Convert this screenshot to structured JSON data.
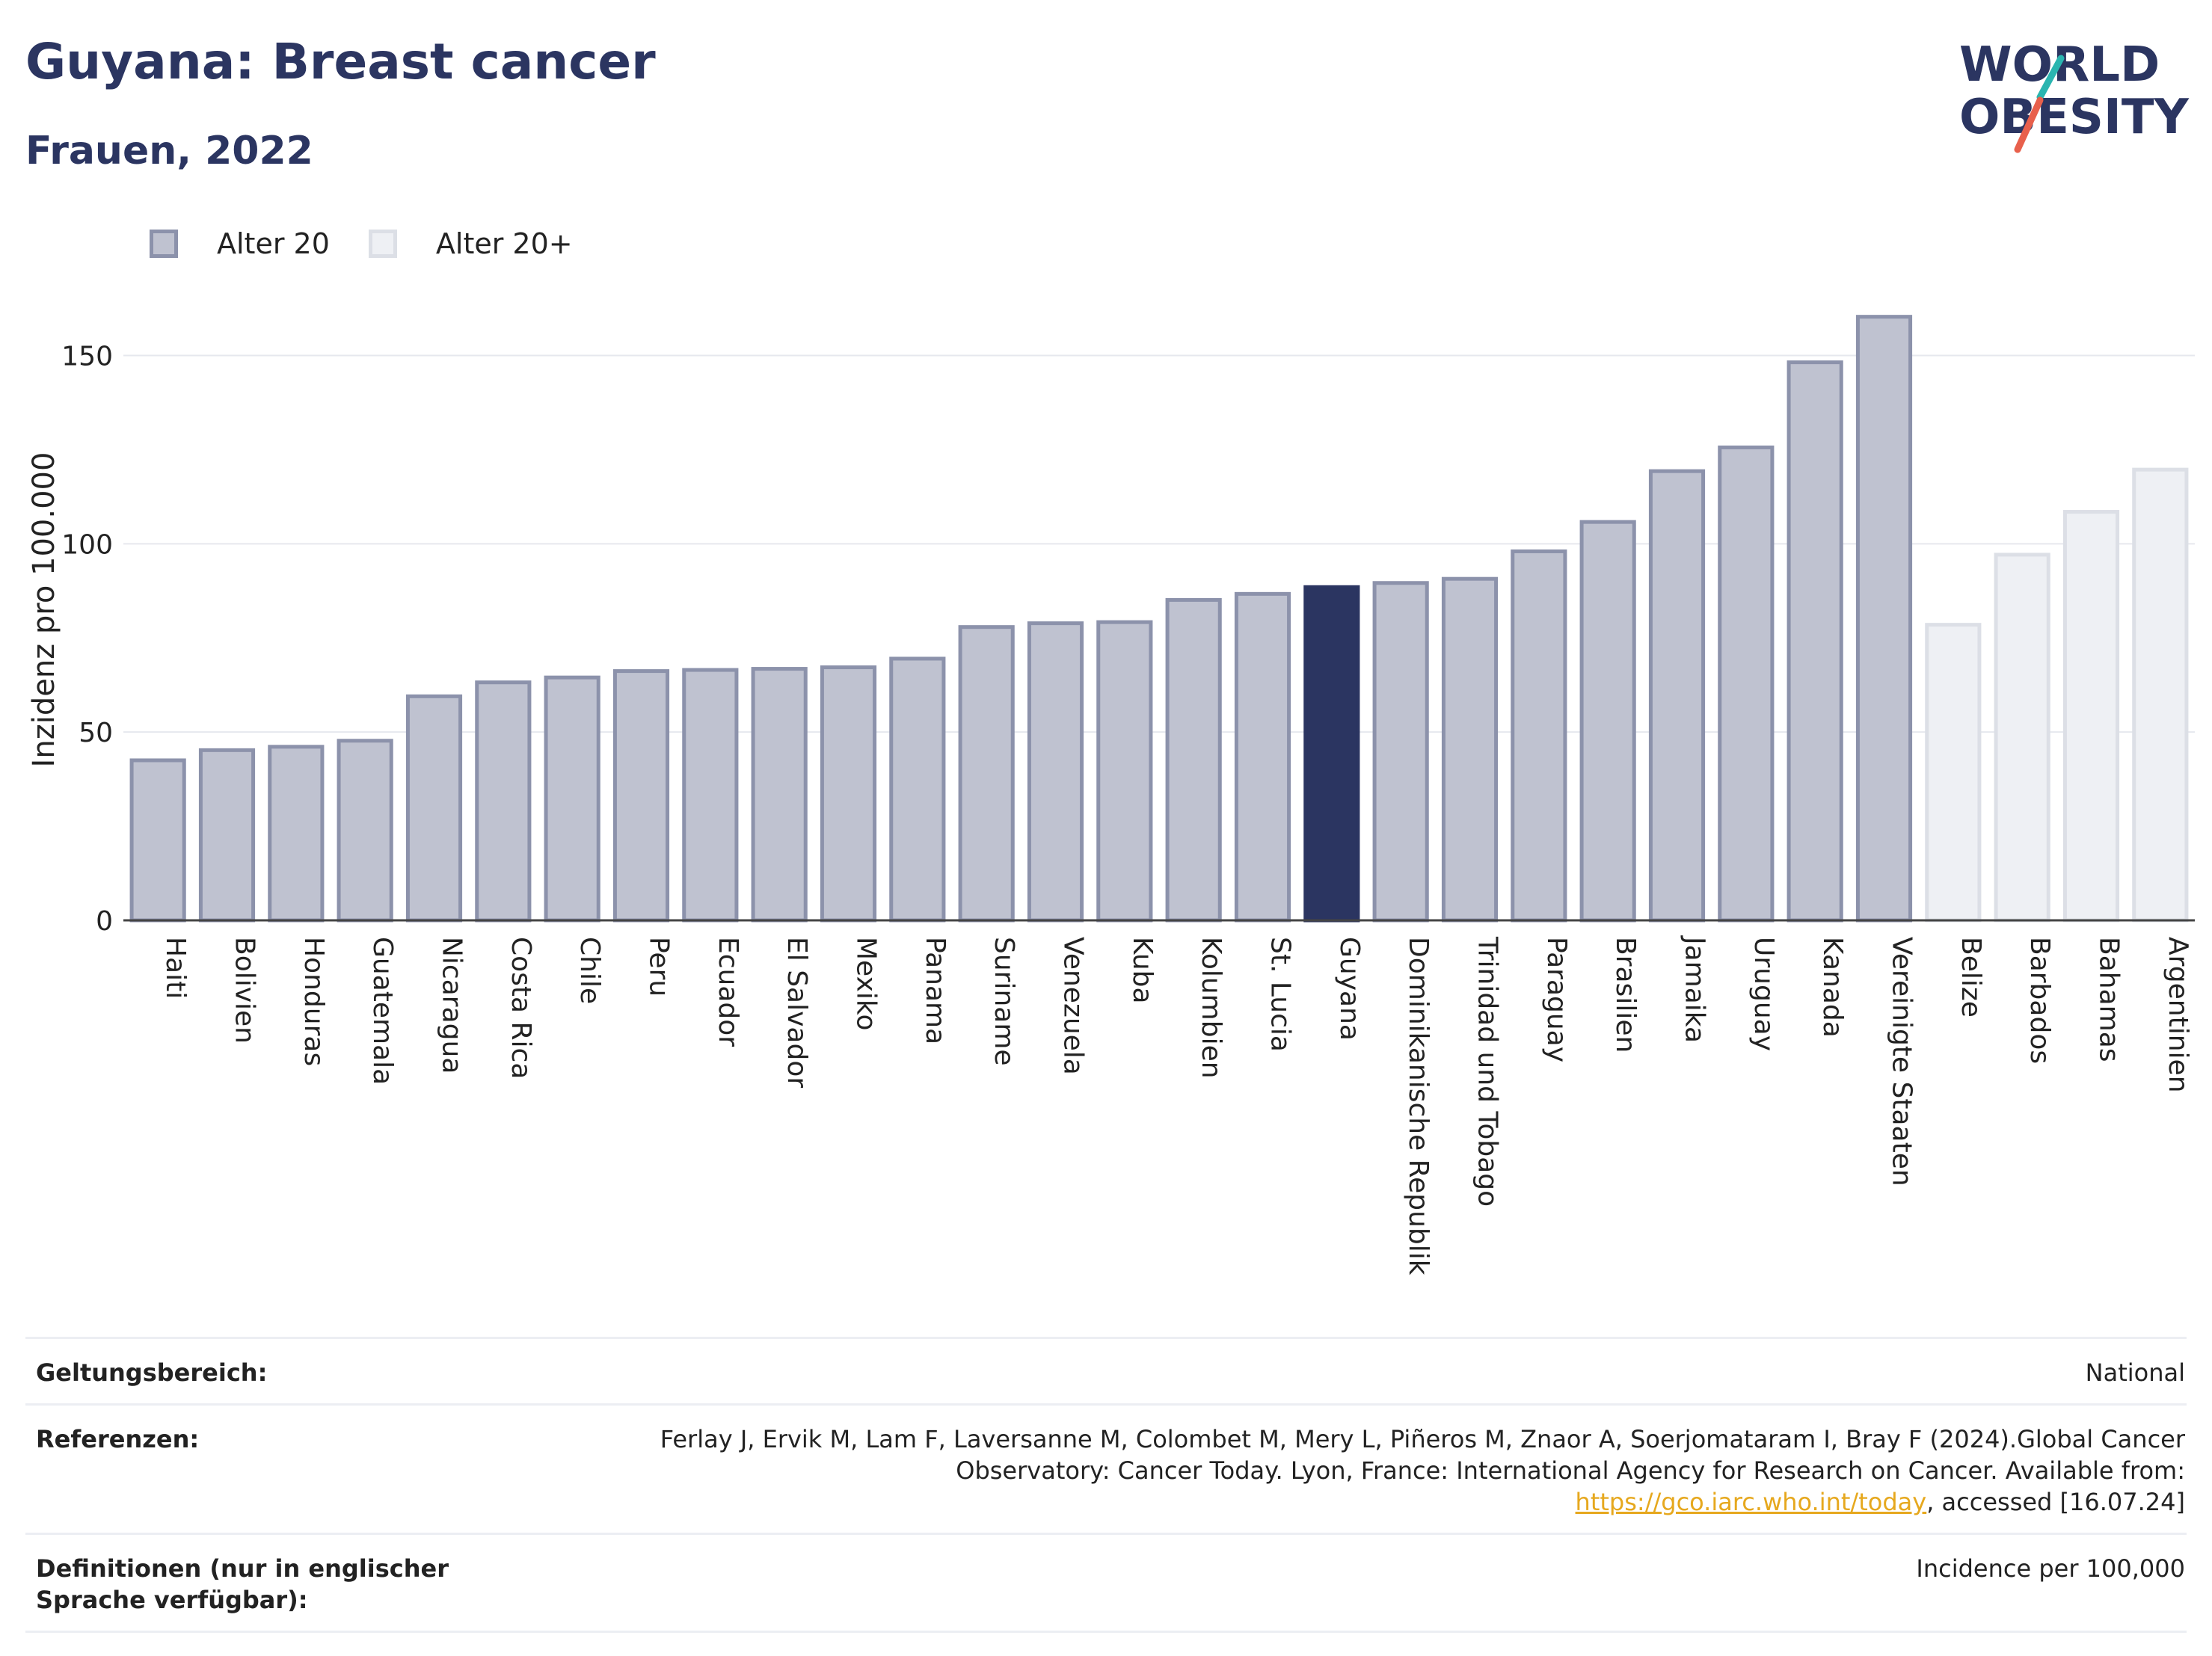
{
  "header": {
    "title": "Guyana: Breast cancer",
    "subtitle": "Frauen, 2022"
  },
  "logo": {
    "line1": "WORLD",
    "line2": "OBESITY",
    "slash_colors": [
      "#2ab5b0",
      "#e8604c"
    ]
  },
  "legend": {
    "items": [
      {
        "label": "Alter 20",
        "color": "#bfc2d0"
      },
      {
        "label": "Alter 20+",
        "color": "#eef0f4"
      }
    ]
  },
  "colors": {
    "highlight": "#2b3561",
    "age20_fill": "#bfc2d0",
    "age20_border": "#8c92ab",
    "age20p_fill": "#eef0f4",
    "age20p_border": "#dcdfe6"
  },
  "chart_data": {
    "type": "bar",
    "ylabel": "Inzidenz pro 100.000",
    "xlabel": "",
    "ylim": [
      0,
      165
    ],
    "yticks": [
      0,
      50,
      100,
      150
    ],
    "grid": true,
    "legend_position": "top-left",
    "highlight": "Guyana",
    "categories": [
      "Haiti",
      "Bolivien",
      "Honduras",
      "Guatemala",
      "Nicaragua",
      "Costa Rica",
      "Chile",
      "Peru",
      "Ecuador",
      "El Salvador",
      "Mexiko",
      "Panama",
      "Suriname",
      "Venezuela",
      "Kuba",
      "Kolumbien",
      "St. Lucia",
      "Guyana",
      "Dominikanische Republik",
      "Trinidad und Tobago",
      "Paraguay",
      "Brasilien",
      "Jamaika",
      "Uruguay",
      "Kanada",
      "Vereinigte Staaten",
      "Belize",
      "Barbados",
      "Bahamas",
      "Argentinien"
    ],
    "values": [
      42.5,
      45.2,
      46.1,
      47.7,
      59.5,
      63.2,
      64.5,
      66.2,
      66.5,
      66.8,
      67.2,
      69.5,
      77.9,
      78.9,
      79.2,
      85.1,
      86.7,
      88.5,
      89.6,
      90.7,
      98.0,
      105.8,
      119.3,
      125.6,
      148.2,
      160.3,
      78.5,
      97.1,
      108.5,
      119.7
    ],
    "groups": [
      "Alter 20",
      "Alter 20",
      "Alter 20",
      "Alter 20",
      "Alter 20",
      "Alter 20",
      "Alter 20",
      "Alter 20",
      "Alter 20",
      "Alter 20",
      "Alter 20",
      "Alter 20",
      "Alter 20",
      "Alter 20",
      "Alter 20",
      "Alter 20",
      "Alter 20",
      "Alter 20",
      "Alter 20",
      "Alter 20",
      "Alter 20",
      "Alter 20",
      "Alter 20",
      "Alter 20",
      "Alter 20",
      "Alter 20",
      "Alter 20+",
      "Alter 20+",
      "Alter 20+",
      "Alter 20+"
    ]
  },
  "info": {
    "scope_label": "Geltungsbereich:",
    "scope_value": "National",
    "refs_label": "Referenzen:",
    "refs_value_1": "Ferlay J, Ervik M, Lam F, Laversanne M, Colombet M, Mery L, Piñeros M, Znaor A, Soerjomataram I, Bray F (2024).Global Cancer Observatory: Cancer Today. Lyon, France: International Agency for Research on Cancer. Available from: ",
    "refs_link": "https://gco.iarc.who.int/today",
    "refs_value_2": ", accessed [16.07.24]",
    "defs_label": "Definitionen (nur in englischer Sprache verfügbar):",
    "defs_value": "Incidence per 100,000"
  }
}
